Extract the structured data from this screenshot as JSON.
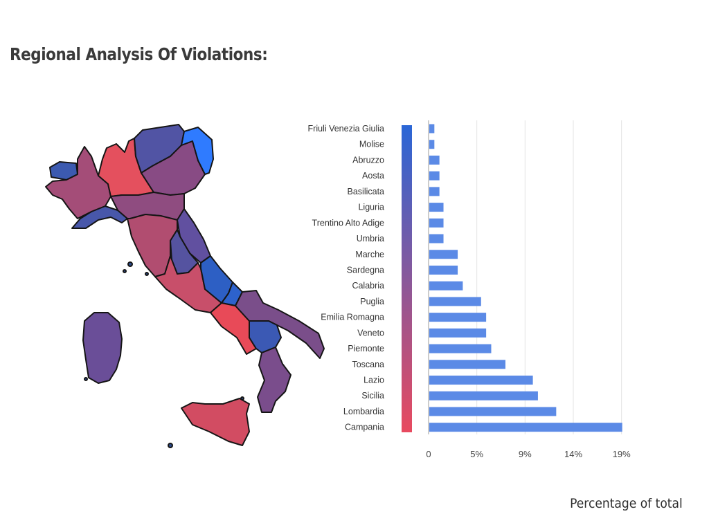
{
  "page": {
    "title": "Regional Analysis Of Violations:",
    "footnote": "Percentage of total"
  },
  "colors": {
    "bar": "#5b8ae6",
    "gradient_top": "#2a66d6",
    "gradient_bottom": "#e84a5f",
    "map_outline": "#151515"
  },
  "chart_data": {
    "type": "bar",
    "orientation": "horizontal",
    "categories": [
      "Friuli Venezia Giulia",
      "Molise",
      "Abruzzo",
      "Aosta",
      "Basilicata",
      "Liguria",
      "Trentino Alto Adige",
      "Umbria",
      "Marche",
      "Sardegna",
      "Calabria",
      "Puglia",
      "Emilia Romagna",
      "Veneto",
      "Piemonte",
      "Toscana",
      "Lazio",
      "Sicilia",
      "Lombardia",
      "Campania"
    ],
    "values": [
      0.5,
      0.5,
      1,
      1,
      1,
      1.4,
      1.4,
      1.4,
      2.8,
      2.8,
      3.3,
      5.1,
      5.6,
      5.6,
      6.1,
      7.5,
      10.2,
      10.7,
      12.5,
      19
    ],
    "xticks": [
      "0",
      "5%",
      "9%",
      "14%",
      "19%"
    ],
    "xtick_values": [
      0,
      4.75,
      9.5,
      14.25,
      19
    ],
    "xlim": [
      0,
      21
    ],
    "xlabel": "Percentage of total",
    "grid": "vertical",
    "legend": "color gradient bar, blue (low) to red (high)"
  },
  "map_data": {
    "type": "choropleth",
    "regions": [
      {
        "name": "Friuli Venezia Giulia",
        "color": "#2f7bff"
      },
      {
        "name": "Veneto",
        "color": "#884b84"
      },
      {
        "name": "Trentino Alto Adige",
        "color": "#5154a4"
      },
      {
        "name": "Lombardia",
        "color": "#e4505e"
      },
      {
        "name": "Piemonte",
        "color": "#a44d78"
      },
      {
        "name": "Aosta",
        "color": "#3c5ab0"
      },
      {
        "name": "Liguria",
        "color": "#4857aa"
      },
      {
        "name": "Emilia Romagna",
        "color": "#8f4c80"
      },
      {
        "name": "Toscana",
        "color": "#b14d70"
      },
      {
        "name": "Umbria",
        "color": "#5553a0"
      },
      {
        "name": "Marche",
        "color": "#6150a0"
      },
      {
        "name": "Lazio",
        "color": "#c84f6a"
      },
      {
        "name": "Abruzzo",
        "color": "#2d5fc4"
      },
      {
        "name": "Molise",
        "color": "#2d62cc"
      },
      {
        "name": "Campania",
        "color": "#e84a58"
      },
      {
        "name": "Puglia",
        "color": "#7a4e8a"
      },
      {
        "name": "Basilicata",
        "color": "#3b59b4"
      },
      {
        "name": "Calabria",
        "color": "#7a4d8c"
      },
      {
        "name": "Sicilia",
        "color": "#d24c62"
      },
      {
        "name": "Sardegna",
        "color": "#6a4e98"
      }
    ]
  }
}
